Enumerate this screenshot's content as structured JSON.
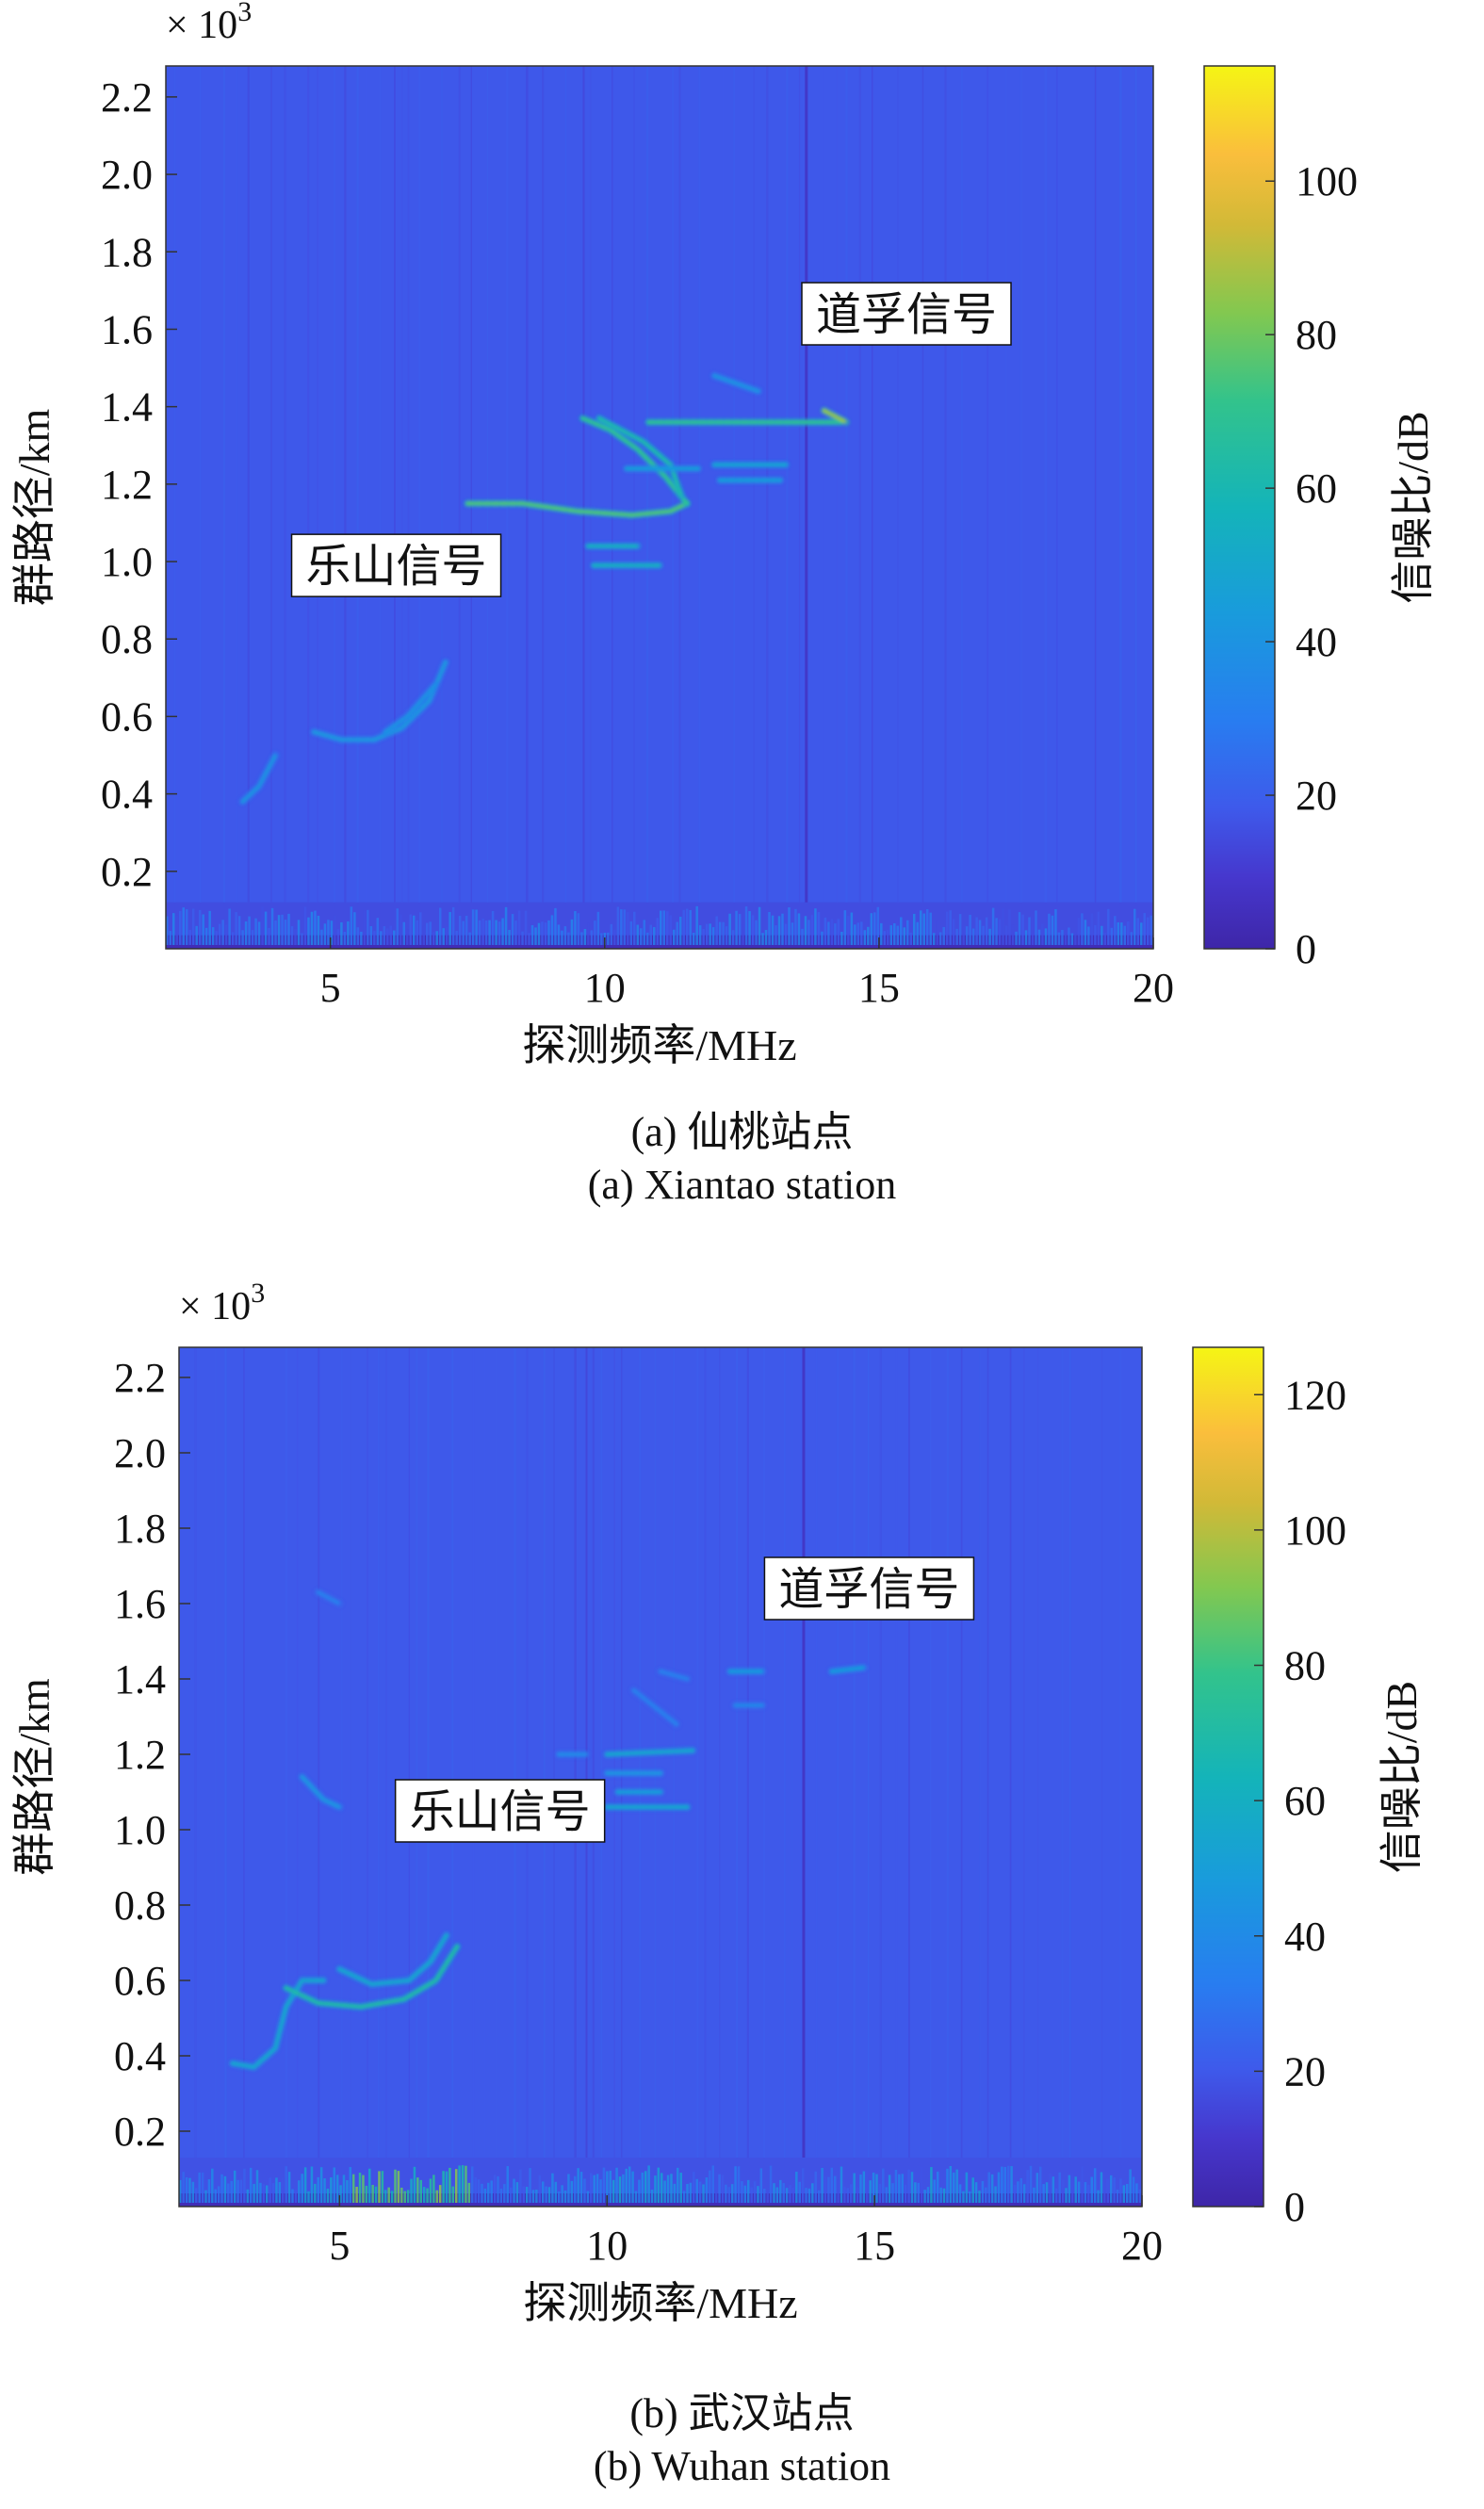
{
  "figures": [
    {
      "id": "a",
      "caption_cn": "(a) 仙桃站点",
      "caption_en": "(a) Xiantao station"
    },
    {
      "id": "b",
      "caption_cn": "(b) 武汉站点",
      "caption_en": "(b) Wuhan station"
    }
  ],
  "chart_data": [
    {
      "type": "heatmap",
      "title": "",
      "xlabel": "探测频率/MHz",
      "ylabel": "群路径/km",
      "y_multiplier_label": "× 10",
      "y_multiplier_exponent": "3",
      "xlim": [
        2,
        20
      ],
      "ylim": [
        0,
        2.28
      ],
      "x_ticks": [
        5,
        10,
        15,
        20
      ],
      "x_tick_labels": [
        "5",
        "10",
        "15",
        "20"
      ],
      "y_ticks": [
        0.2,
        0.4,
        0.6,
        0.8,
        1.0,
        1.2,
        1.4,
        1.6,
        1.8,
        2.0,
        2.2
      ],
      "y_tick_labels": [
        "0.2",
        "0.4",
        "0.6",
        "0.8",
        "1.0",
        "1.2",
        "1.4",
        "1.6",
        "1.8",
        "2.0",
        "2.2"
      ],
      "colorbar": {
        "label": "信噪比/dB",
        "range": [
          0,
          115
        ],
        "ticks": [
          0,
          20,
          40,
          60,
          80,
          100
        ],
        "tick_labels": [
          "0",
          "20",
          "40",
          "60",
          "80",
          "100"
        ]
      },
      "background_snr_db": 18,
      "annotations": [
        {
          "text": "乐山信号",
          "x": 6.2,
          "y": 0.99
        },
        {
          "text": "道孚信号",
          "x": 15.5,
          "y": 1.64
        }
      ],
      "traces": [
        {
          "points": [
            [
              3.4,
              0.38
            ],
            [
              3.7,
              0.42
            ],
            [
              4.0,
              0.5
            ]
          ],
          "snr": 40
        },
        {
          "points": [
            [
              4.7,
              0.56
            ],
            [
              5.2,
              0.54
            ],
            [
              5.8,
              0.54
            ],
            [
              6.3,
              0.57
            ],
            [
              6.8,
              0.64
            ],
            [
              7.1,
              0.74
            ]
          ],
          "snr": 42
        },
        {
          "points": [
            [
              6.0,
              0.56
            ],
            [
              6.4,
              0.6
            ],
            [
              6.9,
              0.68
            ]
          ],
          "snr": 40
        },
        {
          "points": [
            [
              7.5,
              1.15
            ],
            [
              8.5,
              1.15
            ],
            [
              9.5,
              1.13
            ],
            [
              10.5,
              1.12
            ],
            [
              11.2,
              1.13
            ],
            [
              11.5,
              1.15
            ]
          ],
          "snr": 75
        },
        {
          "points": [
            [
              11.5,
              1.15
            ],
            [
              11.1,
              1.22
            ],
            [
              10.6,
              1.29
            ],
            [
              10.1,
              1.34
            ],
            [
              9.6,
              1.37
            ]
          ],
          "snr": 70
        },
        {
          "points": [
            [
              9.9,
              1.37
            ],
            [
              10.7,
              1.31
            ],
            [
              11.2,
              1.25
            ],
            [
              11.4,
              1.17
            ]
          ],
          "snr": 62
        },
        {
          "points": [
            [
              9.7,
              1.04
            ],
            [
              10.6,
              1.04
            ]
          ],
          "snr": 55
        },
        {
          "points": [
            [
              9.8,
              0.99
            ],
            [
              11.0,
              0.99
            ]
          ],
          "snr": 55
        },
        {
          "points": [
            [
              10.4,
              1.24
            ],
            [
              11.7,
              1.24
            ]
          ],
          "snr": 45
        },
        {
          "points": [
            [
              12.0,
              1.25
            ],
            [
              13.3,
              1.25
            ]
          ],
          "snr": 48
        },
        {
          "points": [
            [
              12.1,
              1.21
            ],
            [
              13.2,
              1.21
            ]
          ],
          "snr": 45
        },
        {
          "points": [
            [
              10.8,
              1.36
            ],
            [
              14.3,
              1.36
            ]
          ],
          "snr": 70
        },
        {
          "points": [
            [
              14.0,
              1.39
            ],
            [
              14.4,
              1.36
            ]
          ],
          "snr": 85
        },
        {
          "points": [
            [
              12.0,
              1.48
            ],
            [
              12.8,
              1.44
            ]
          ],
          "snr": 40
        }
      ],
      "bottom_band": {
        "y_range": [
          0,
          0.12
        ],
        "snr_range": [
          15,
          35
        ],
        "hot": []
      }
    },
    {
      "type": "heatmap",
      "title": "",
      "xlabel": "探测频率/MHz",
      "ylabel": "群路径/km",
      "y_multiplier_label": "× 10",
      "y_multiplier_exponent": "3",
      "xlim": [
        2,
        20
      ],
      "ylim": [
        0,
        2.28
      ],
      "x_ticks": [
        5,
        10,
        15,
        20
      ],
      "x_tick_labels": [
        "5",
        "10",
        "15",
        "20"
      ],
      "y_ticks": [
        0.2,
        0.4,
        0.6,
        0.8,
        1.0,
        1.2,
        1.4,
        1.6,
        1.8,
        2.0,
        2.2
      ],
      "y_tick_labels": [
        "0.2",
        "0.4",
        "0.6",
        "0.8",
        "1.0",
        "1.2",
        "1.4",
        "1.6",
        "1.8",
        "2.0",
        "2.2"
      ],
      "colorbar": {
        "label": "信噪比/dB",
        "range": [
          0,
          127
        ],
        "ticks": [
          0,
          20,
          40,
          60,
          80,
          100,
          120
        ],
        "tick_labels": [
          "0",
          "20",
          "40",
          "60",
          "80",
          "100",
          "120"
        ]
      },
      "background_snr_db": 20,
      "annotations": [
        {
          "text": "乐山信号",
          "x": 8.0,
          "y": 1.05
        },
        {
          "text": "道孚信号",
          "x": 14.9,
          "y": 1.64
        }
      ],
      "traces": [
        {
          "points": [
            [
              3.0,
              0.38
            ],
            [
              3.4,
              0.37
            ],
            [
              3.8,
              0.42
            ],
            [
              4.0,
              0.53
            ],
            [
              4.3,
              0.6
            ],
            [
              4.7,
              0.6
            ]
          ],
          "snr": 55
        },
        {
          "points": [
            [
              4.0,
              0.58
            ],
            [
              4.6,
              0.54
            ],
            [
              5.4,
              0.53
            ],
            [
              6.2,
              0.55
            ],
            [
              6.8,
              0.6
            ],
            [
              7.2,
              0.69
            ]
          ],
          "snr": 70
        },
        {
          "points": [
            [
              5.0,
              0.63
            ],
            [
              5.6,
              0.59
            ],
            [
              6.3,
              0.6
            ],
            [
              6.7,
              0.65
            ],
            [
              7.0,
              0.72
            ]
          ],
          "snr": 55
        },
        {
          "points": [
            [
              4.3,
              1.14
            ],
            [
              4.7,
              1.08
            ],
            [
              5.0,
              1.06
            ]
          ],
          "snr": 45
        },
        {
          "points": [
            [
              4.6,
              1.63
            ],
            [
              5.0,
              1.6
            ]
          ],
          "snr": 35
        },
        {
          "points": [
            [
              10.0,
              1.06
            ],
            [
              11.5,
              1.06
            ]
          ],
          "snr": 55
        },
        {
          "points": [
            [
              10.2,
              1.1
            ],
            [
              11.0,
              1.1
            ]
          ],
          "snr": 50
        },
        {
          "points": [
            [
              10.0,
              1.15
            ],
            [
              11.0,
              1.15
            ]
          ],
          "snr": 45
        },
        {
          "points": [
            [
              10.0,
              1.2
            ],
            [
              11.6,
              1.21
            ]
          ],
          "snr": 55
        },
        {
          "points": [
            [
              9.1,
              1.2
            ],
            [
              9.6,
              1.2
            ]
          ],
          "snr": 40
        },
        {
          "points": [
            [
              10.5,
              1.37
            ],
            [
              11.3,
              1.28
            ]
          ],
          "snr": 35
        },
        {
          "points": [
            [
              12.3,
              1.42
            ],
            [
              12.9,
              1.42
            ]
          ],
          "snr": 48
        },
        {
          "points": [
            [
              12.4,
              1.33
            ],
            [
              12.9,
              1.33
            ]
          ],
          "snr": 38
        },
        {
          "points": [
            [
              14.2,
              1.42
            ],
            [
              14.8,
              1.43
            ]
          ],
          "snr": 48
        },
        {
          "points": [
            [
              11.0,
              1.42
            ],
            [
              11.5,
              1.4
            ]
          ],
          "snr": 35
        }
      ],
      "bottom_band": {
        "y_range": [
          0,
          0.13
        ],
        "snr_range": [
          18,
          45
        ],
        "hot": [
          [
            5.2,
            7.4,
            95
          ],
          [
            4.2,
            5.2,
            60
          ],
          [
            10.0,
            11.5,
            55
          ],
          [
            16.0,
            17.0,
            55
          ]
        ]
      }
    }
  ]
}
